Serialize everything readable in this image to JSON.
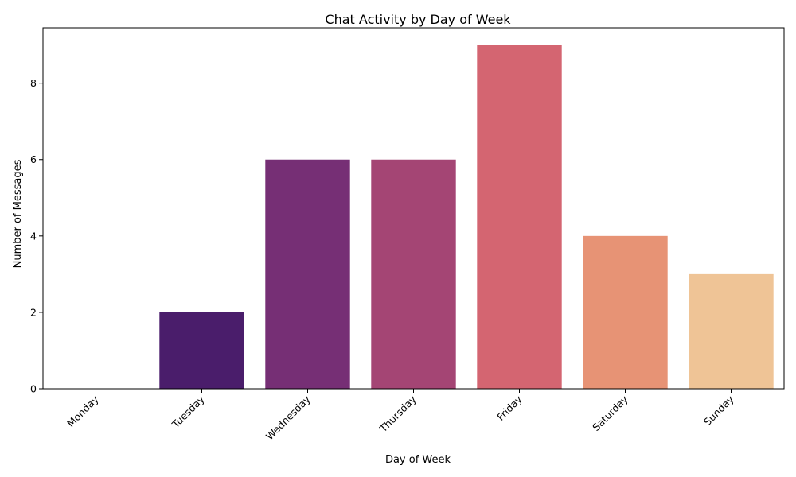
{
  "chart_data": {
    "type": "bar",
    "title": "Chat Activity by Day of Week",
    "xlabel": "Day of Week",
    "ylabel": "Number of Messages",
    "categories": [
      "Monday",
      "Tuesday",
      "Wednesday",
      "Thursday",
      "Friday",
      "Saturday",
      "Sunday"
    ],
    "values": [
      0,
      2,
      6,
      6,
      9,
      4,
      3
    ],
    "colors": [
      "#2a1856",
      "#4a1d6b",
      "#762f75",
      "#a44574",
      "#d46571",
      "#e79375",
      "#efc496"
    ],
    "ylim": [
      0,
      9.45
    ],
    "yticks": [
      0,
      2,
      4,
      6,
      8
    ],
    "xtick_rotation": 45,
    "grid": false,
    "legend": "none"
  }
}
